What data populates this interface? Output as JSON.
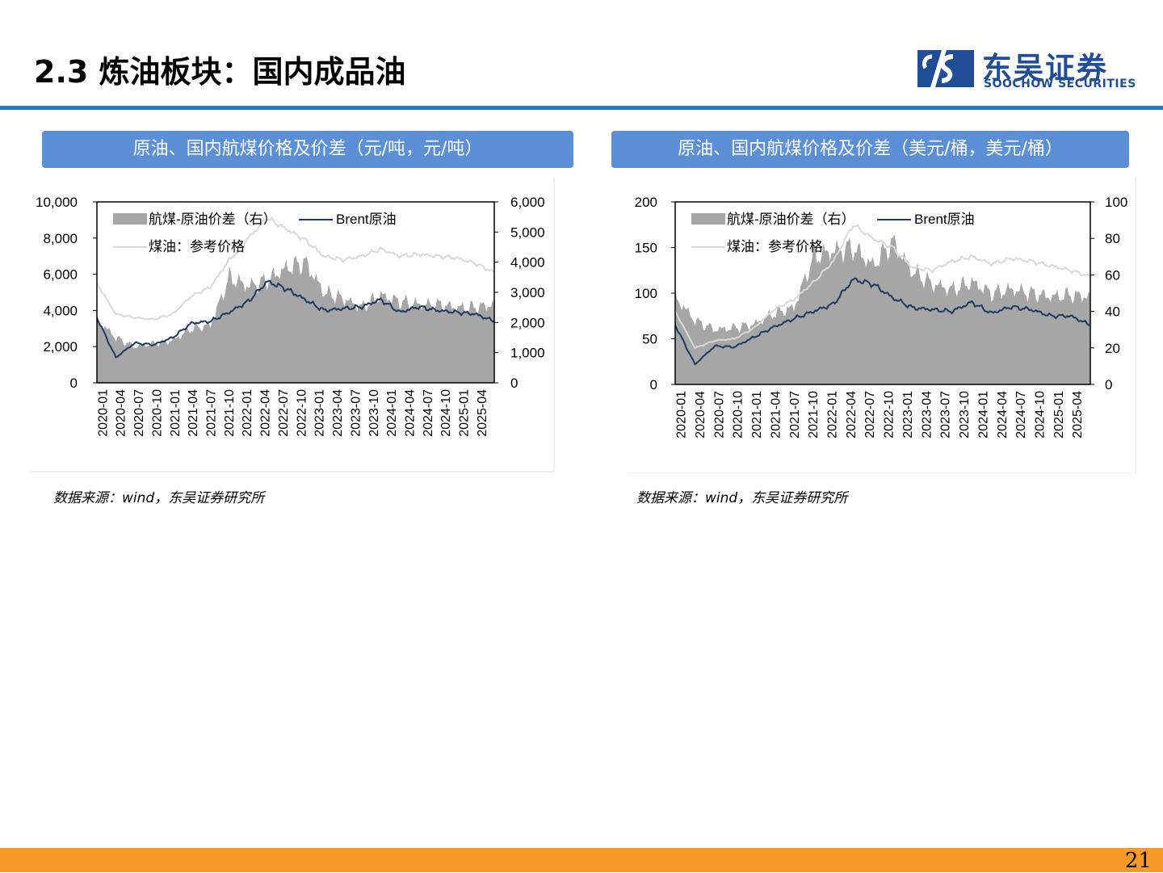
{
  "page": {
    "title": "2.3 炼油板块：国内成品油",
    "logo_cn": "东吴证券",
    "logo_en": "SOOCHOW SECURITIES",
    "page_number": "21"
  },
  "colors": {
    "accent_blue": "#1F78C8",
    "banner_blue": "#5B8FD6",
    "orange": "#F79A27",
    "spread_gray": "#A6A6A6",
    "brent_navy": "#1F3864",
    "jet_light": "#D9D9D9"
  },
  "chart_data": [
    {
      "type": "area",
      "banner": "原油、国内航煤价格及价差（元/吨，元/吨）",
      "source": "数据来源：wind，东吴证券研究所",
      "x": [
        "2020-01",
        "2020-04",
        "2020-07",
        "2020-10",
        "2021-01",
        "2021-04",
        "2021-07",
        "2021-10",
        "2022-01",
        "2022-04",
        "2022-07",
        "2022-10",
        "2023-01",
        "2023-04",
        "2023-07",
        "2023-10",
        "2024-01",
        "2024-04",
        "2024-07",
        "2024-10",
        "2025-01",
        "2025-04"
      ],
      "left_axis": {
        "range": [
          0,
          10000
        ],
        "ticks": [
          "10,000",
          "8,000",
          "6,000",
          "4,000",
          "2,000",
          "0"
        ]
      },
      "right_axis": {
        "range": [
          0,
          6000
        ],
        "ticks": [
          "6,000",
          "5,000",
          "4,000",
          "3,000",
          "2,000",
          "1,000",
          "0"
        ]
      },
      "legend": [
        "航煤-原油价差（右）",
        "Brent原油",
        "煤油：参考价格"
      ],
      "series": [
        {
          "name": "航煤-原油价差（右）",
          "axis": "right",
          "kind": "area",
          "values": [
            2100,
            1500,
            1200,
            1300,
            1400,
            1800,
            1900,
            3500,
            3200,
            3400,
            3800,
            4000,
            3000,
            2800,
            2500,
            2900,
            2700,
            2600,
            2600,
            2500,
            2500,
            2600
          ]
        },
        {
          "name": "Brent原油",
          "axis": "left",
          "kind": "line",
          "values": [
            3600,
            1400,
            2200,
            2100,
            2500,
            3300,
            3400,
            3900,
            4500,
            5600,
            5200,
            4600,
            4000,
            4100,
            4200,
            4600,
            3900,
            4200,
            4000,
            3900,
            3800,
            3400
          ]
        },
        {
          "name": "煤油：参考价格",
          "axis": "left",
          "kind": "line",
          "values": [
            5500,
            3800,
            3600,
            3500,
            3800,
            4800,
            5300,
            6800,
            8000,
            9100,
            8500,
            7900,
            7000,
            6800,
            7000,
            7400,
            7000,
            7100,
            7000,
            6900,
            6600,
            6100
          ]
        }
      ]
    },
    {
      "type": "area",
      "banner": "原油、国内航煤价格及价差（美元/桶，美元/桶）",
      "source": "数据来源：wind，东吴证券研究所",
      "x": [
        "2020-01",
        "2020-04",
        "2020-07",
        "2020-10",
        "2021-01",
        "2021-04",
        "2021-07",
        "2021-10",
        "2022-01",
        "2022-04",
        "2022-07",
        "2022-10",
        "2023-01",
        "2023-04",
        "2023-07",
        "2023-10",
        "2024-01",
        "2024-04",
        "2024-07",
        "2024-10",
        "2025-01",
        "2025-04"
      ],
      "left_axis": {
        "range": [
          0,
          200
        ],
        "ticks": [
          "200",
          "150",
          "100",
          "50",
          "0"
        ]
      },
      "right_axis": {
        "range": [
          0,
          100
        ],
        "ticks": [
          "100",
          "80",
          "60",
          "40",
          "20",
          "0"
        ]
      },
      "legend": [
        "航煤-原油价差（右）",
        "Brent原油",
        "煤油：参考价格"
      ],
      "series": [
        {
          "name": "航煤-原油价差（右）",
          "axis": "right",
          "kind": "area",
          "values": [
            48,
            35,
            30,
            31,
            33,
            39,
            42,
            70,
            73,
            75,
            65,
            78,
            62,
            55,
            52,
            56,
            50,
            52,
            50,
            48,
            49,
            48
          ]
        },
        {
          "name": "Brent原油",
          "axis": "left",
          "kind": "line",
          "values": [
            65,
            22,
            42,
            41,
            52,
            63,
            72,
            80,
            88,
            115,
            110,
            95,
            84,
            82,
            80,
            90,
            78,
            85,
            82,
            75,
            75,
            65
          ]
        },
        {
          "name": "煤油：参考价格",
          "axis": "left",
          "kind": "line",
          "values": [
            80,
            40,
            48,
            50,
            62,
            82,
            93,
            112,
            135,
            175,
            160,
            150,
            128,
            125,
            135,
            140,
            132,
            138,
            135,
            130,
            125,
            118
          ]
        }
      ]
    }
  ]
}
